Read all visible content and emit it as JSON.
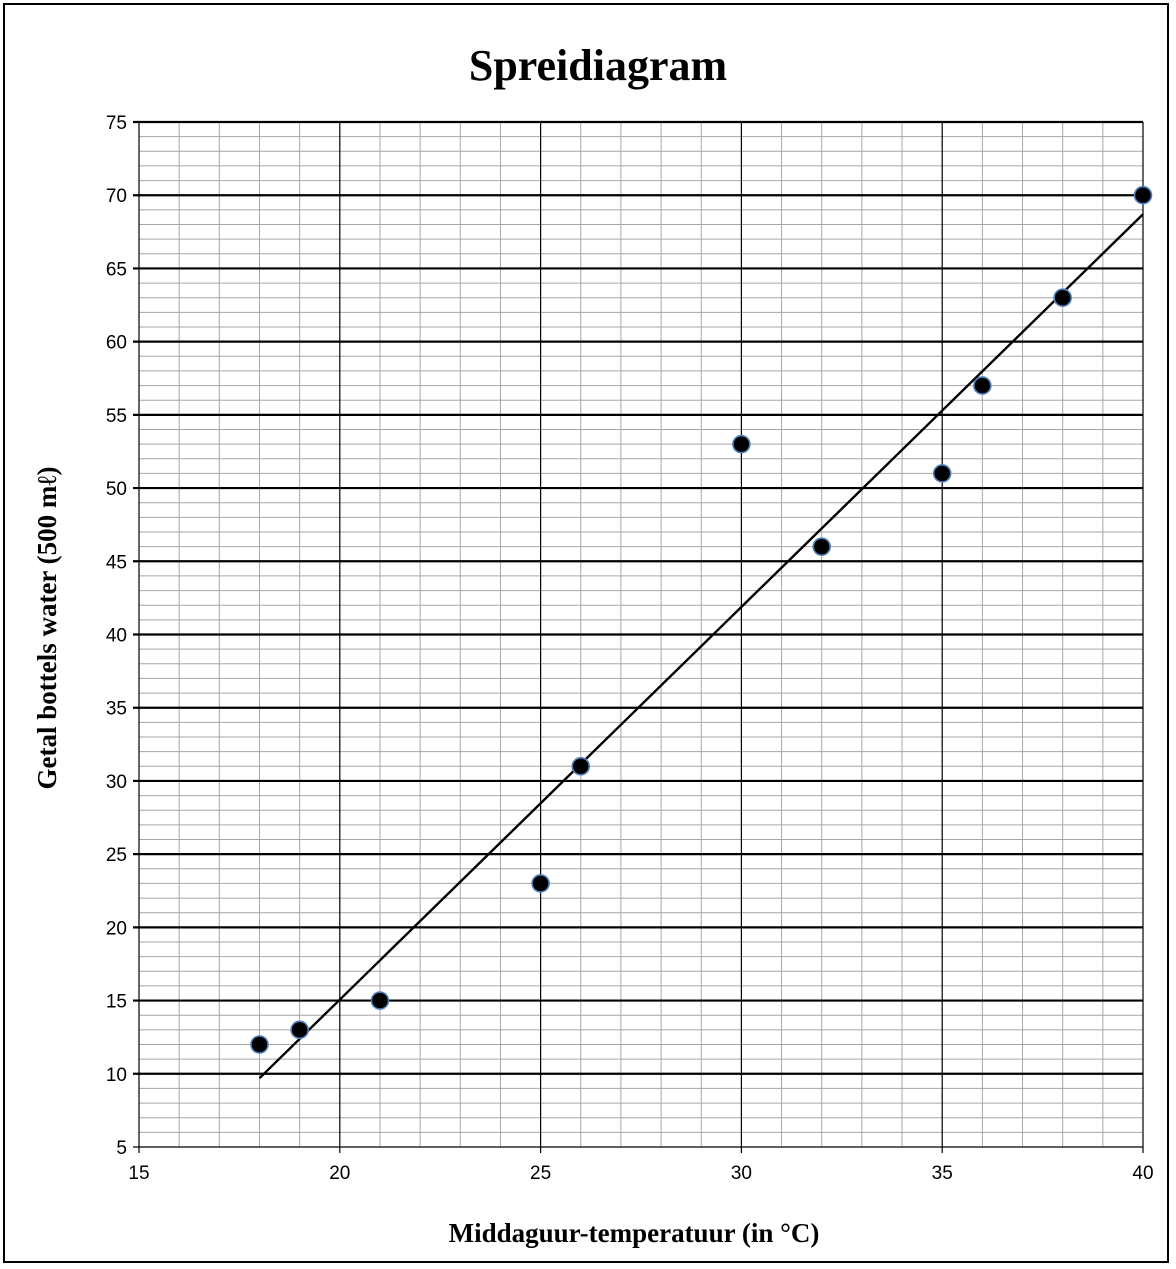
{
  "chart_data": {
    "type": "scatter",
    "title": "Spreidiagram",
    "xlabel": "Middaguur-temperatuur (in °C)",
    "ylabel": "Getal bottels water (500 mℓ)",
    "xlim": [
      15,
      40
    ],
    "ylim": [
      5,
      75
    ],
    "x_ticks": [
      15,
      20,
      25,
      30,
      35,
      40
    ],
    "y_ticks": [
      5,
      10,
      15,
      20,
      25,
      30,
      35,
      40,
      45,
      50,
      55,
      60,
      65,
      70,
      75
    ],
    "x_minor_step": 1,
    "y_minor_step": 1,
    "grid": true,
    "points": [
      {
        "x": 18,
        "y": 12
      },
      {
        "x": 19,
        "y": 13
      },
      {
        "x": 21,
        "y": 15
      },
      {
        "x": 25,
        "y": 23
      },
      {
        "x": 26,
        "y": 31
      },
      {
        "x": 30,
        "y": 53
      },
      {
        "x": 32,
        "y": 46
      },
      {
        "x": 35,
        "y": 51
      },
      {
        "x": 36,
        "y": 57
      },
      {
        "x": 38,
        "y": 63
      },
      {
        "x": 40,
        "y": 70
      }
    ],
    "trendline": {
      "x1": 18,
      "y1": 9.7,
      "x2": 40,
      "y2": 68.7
    },
    "colors": {
      "marker_fill": "#000000",
      "marker_stroke": "#4f81bd",
      "major_grid": "#000000",
      "minor_grid": "#a6a6a6",
      "trendline": "#000000"
    }
  }
}
